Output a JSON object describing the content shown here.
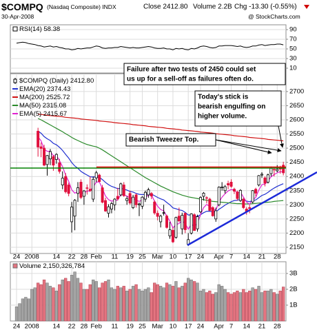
{
  "header": {
    "symbol": "$COMPQ",
    "name": "(Nasdaq Composite) INDX",
    "close": "Close 2412.80",
    "volume": "Volume 2.2B",
    "change": "Chg -13.30 (-0.55%)",
    "date": "30-Apr-2008",
    "source": "@ StockCharts.com"
  },
  "chart_data": [
    {
      "type": "line",
      "name": "RSI(14)",
      "color": "#000000",
      "ylim": [
        0,
        100
      ],
      "yticks": [
        10,
        30,
        50,
        70,
        90
      ],
      "grid": true,
      "values": [
        62,
        63,
        64,
        63,
        61,
        60,
        59,
        57,
        56,
        54,
        55,
        56,
        54,
        55,
        53,
        52,
        50,
        50,
        48,
        49,
        51,
        50,
        51,
        52,
        52,
        54,
        56,
        55,
        52,
        51,
        52,
        52,
        53,
        53,
        55,
        54,
        53,
        52,
        53,
        52,
        52,
        53,
        54,
        55,
        54,
        52,
        51,
        51,
        52,
        50,
        50,
        48,
        51,
        50,
        51,
        49,
        48,
        51,
        50,
        52,
        55,
        56,
        55,
        53,
        52,
        53,
        56,
        56,
        57,
        57,
        57,
        56,
        55,
        56,
        54,
        53,
        54,
        56,
        56,
        58,
        59,
        57,
        58,
        59,
        59,
        60,
        60,
        58.38
      ]
    },
    {
      "type": "candlestick",
      "name": "$COMPQ (Daily)",
      "legend_value": "2412.80",
      "up_color": "#000000",
      "down_color": "#e0103c",
      "ylim": [
        2128,
        2763
      ],
      "yticks": [
        2150,
        2200,
        2250,
        2300,
        2350,
        2400,
        2450,
        2500,
        2550,
        2600,
        2650,
        2700
      ],
      "grid": true,
      "categories": [
        "24",
        null,
        null,
        null,
        null,
        "2008",
        null,
        null,
        null,
        null,
        null,
        null,
        null,
        "14",
        null,
        null,
        null,
        null,
        "22",
        null,
        null,
        null,
        "28",
        null,
        null,
        null,
        "Feb",
        null,
        null,
        null,
        null,
        null,
        "11",
        null,
        null,
        null,
        null,
        "19",
        null,
        null,
        null,
        "25",
        null,
        null,
        null,
        null,
        "Mar",
        null,
        null,
        null,
        null,
        "10",
        null,
        null,
        null,
        null,
        "17",
        null,
        null,
        null,
        "24",
        null,
        null,
        null,
        null,
        null,
        "Apr",
        null,
        null,
        null,
        "7",
        null,
        null,
        null,
        null,
        "14",
        null,
        null,
        null,
        null,
        "21",
        null,
        null,
        null,
        null,
        "28",
        null,
        null
      ],
      "open": [
        null,
        null,
        null,
        null,
        null,
        null,
        null,
        2560,
        2505,
        2500,
        2442,
        2462,
        2470,
        2460,
        2448,
        2370,
        2400,
        2370,
        2240,
        2260,
        2340,
        2380,
        2330,
        2360,
        2355,
        2320,
        2395,
        2405,
        2360,
        2315,
        2270,
        2285,
        2300,
        2330,
        2335,
        2370,
        2315,
        2340,
        2290,
        2335,
        2300,
        2295,
        2320,
        2335,
        2340,
        2310,
        2270,
        2240,
        2270,
        2260,
        2190,
        2210,
        2185,
        2260,
        2215,
        2270,
        2160,
        2200,
        2265,
        2215,
        2275,
        2330,
        2325,
        2320,
        2290,
        2250,
        2300,
        2360,
        2350,
        2375,
        2380,
        2355,
        2345,
        2315,
        2320,
        2285,
        2290,
        2310,
        2355,
        2370,
        2405,
        2395,
        2380,
        2410,
        2425,
        2420,
        2430,
        2440
      ],
      "high": [
        null,
        null,
        null,
        null,
        null,
        null,
        null,
        2572,
        2520,
        2512,
        2476,
        2497,
        2476,
        2482,
        2462,
        2418,
        2412,
        2378,
        2310,
        2320,
        2380,
        2390,
        2352,
        2372,
        2400,
        2400,
        2420,
        2410,
        2370,
        2325,
        2302,
        2310,
        2323,
        2360,
        2378,
        2380,
        2330,
        2350,
        2335,
        2340,
        2308,
        2330,
        2350,
        2360,
        2345,
        2315,
        2280,
        2265,
        2300,
        2265,
        2240,
        2220,
        2258,
        2290,
        2272,
        2272,
        2200,
        2270,
        2270,
        2265,
        2330,
        2345,
        2330,
        2325,
        2295,
        2290,
        2365,
        2380,
        2370,
        2385,
        2390,
        2360,
        2350,
        2355,
        2325,
        2292,
        2300,
        2352,
        2360,
        2405,
        2415,
        2400,
        2410,
        2435,
        2430,
        2440,
        2438,
        2452
      ],
      "low": [
        null,
        null,
        null,
        null,
        null,
        null,
        null,
        2470,
        2468,
        2436,
        2403,
        2440,
        2420,
        2445,
        2410,
        2355,
        2340,
        2330,
        2202,
        2210,
        2310,
        2320,
        2300,
        2336,
        2345,
        2310,
        2380,
        2380,
        2305,
        2275,
        2255,
        2270,
        2280,
        2315,
        2330,
        2328,
        2300,
        2300,
        2285,
        2290,
        2260,
        2285,
        2310,
        2325,
        2320,
        2265,
        2245,
        2220,
        2262,
        2216,
        2180,
        2165,
        2180,
        2238,
        2195,
        2200,
        2155,
        2195,
        2208,
        2205,
        2270,
        2315,
        2305,
        2278,
        2258,
        2240,
        2295,
        2350,
        2340,
        2355,
        2360,
        2338,
        2315,
        2310,
        2285,
        2265,
        2270,
        2305,
        2330,
        2365,
        2395,
        2365,
        2375,
        2400,
        2400,
        2415,
        2410,
        2404
      ],
      "close": [
        null,
        null,
        null,
        null,
        null,
        null,
        null,
        2504,
        2499,
        2440,
        2474,
        2488,
        2440,
        2478,
        2418,
        2394,
        2346,
        2340,
        2292,
        2316,
        2360,
        2326,
        2349,
        2358,
        2350,
        2390,
        2413,
        2382,
        2309,
        2278,
        2293,
        2304,
        2320,
        2321,
        2374,
        2332,
        2322,
        2306,
        2327,
        2300,
        2303,
        2327,
        2344,
        2353,
        2331,
        2271,
        2259,
        2260,
        2272,
        2220,
        2212,
        2169,
        2255,
        2243,
        2263,
        2212,
        2177,
        2268,
        2209,
        2258,
        2326,
        2341,
        2324,
        2280,
        2261,
        2279,
        2362,
        2363,
        2364,
        2370,
        2365,
        2348,
        2322,
        2351,
        2290,
        2275,
        2287,
        2350,
        2341,
        2403,
        2408,
        2376,
        2406,
        2429,
        2423,
        2425,
        2426,
        2412.8
      ],
      "series": [
        {
          "name": "EMA(20)",
          "color": "#2030d0",
          "values": [
            null,
            null,
            null,
            null,
            null,
            null,
            null,
            2560,
            2553,
            2541,
            2533,
            2527,
            2517,
            2512,
            2503,
            2492,
            2478,
            2465,
            2449,
            2437,
            2429,
            2418,
            2411,
            2405,
            2399,
            2398,
            2399,
            2397,
            2389,
            2379,
            2371,
            2365,
            2361,
            2357,
            2358,
            2355,
            2352,
            2347,
            2345,
            2340,
            2337,
            2336,
            2337,
            2339,
            2338,
            2332,
            2326,
            2321,
            2317,
            2308,
            2300,
            2289,
            2286,
            2282,
            2280,
            2273,
            2264,
            2264,
            2259,
            2259,
            2265,
            2272,
            2277,
            2277,
            2275,
            2275,
            2284,
            2291,
            2299,
            2305,
            2311,
            2315,
            2316,
            2320,
            2317,
            2313,
            2311,
            2315,
            2317,
            2325,
            2333,
            2337,
            2344,
            2352,
            2359,
            2365,
            2370,
            2374.43
          ]
        },
        {
          "name": "MA(200)",
          "color": "#d01010",
          "values": [
            null,
            null,
            null,
            null,
            null,
            null,
            null,
            2620,
            2619,
            2618,
            2616,
            2615,
            2614,
            2613,
            2612,
            2611,
            2609,
            2608,
            2607,
            2606,
            2605,
            2603,
            2602,
            2601,
            2600,
            2599,
            2598,
            2596,
            2595,
            2594,
            2593,
            2592,
            2590,
            2589,
            2588,
            2587,
            2586,
            2585,
            2583,
            2582,
            2581,
            2580,
            2579,
            2577,
            2576,
            2575,
            2574,
            2573,
            2572,
            2570,
            2569,
            2568,
            2567,
            2566,
            2564,
            2563,
            2562,
            2561,
            2560,
            2559,
            2557,
            2556,
            2555,
            2554,
            2553,
            2551,
            2550,
            2549,
            2548,
            2547,
            2546,
            2544,
            2543,
            2542,
            2541,
            2540,
            2538,
            2537,
            2536,
            2535,
            2534,
            2533,
            2531,
            2530,
            2529,
            2528,
            2527,
            2525.72
          ]
        },
        {
          "name": "MA(50)",
          "color": "#2a8a2a",
          "values": [
            null,
            null,
            null,
            null,
            null,
            null,
            null,
            2605,
            2600,
            2594,
            2588,
            2582,
            2576,
            2570,
            2564,
            2558,
            2551,
            2545,
            2538,
            2532,
            2527,
            2522,
            2517,
            2513,
            2510,
            2507,
            2505,
            2500,
            2494,
            2487,
            2480,
            2473,
            2466,
            2459,
            2452,
            2445,
            2438,
            2431,
            2424,
            2417,
            2410,
            2403,
            2396,
            2390,
            2384,
            2378,
            2372,
            2366,
            2361,
            2356,
            2351,
            2346,
            2342,
            2338,
            2334,
            2331,
            2328,
            2326,
            2324,
            2322,
            2320,
            2318,
            2316,
            2314,
            2312,
            2311,
            2310,
            2309,
            2308,
            2307,
            2306,
            2305,
            2304,
            2304,
            2303,
            2303,
            2303,
            2304,
            2305,
            2306,
            2307,
            2308,
            2309,
            2310,
            2312,
            2313,
            2314,
            2315.08
          ]
        },
        {
          "name": "EMA(5)",
          "color": "#e020d0",
          "values": [
            null,
            null,
            null,
            null,
            null,
            null,
            null,
            2540,
            2526,
            2497,
            2489,
            2489,
            2473,
            2475,
            2456,
            2435,
            2405,
            2383,
            2353,
            2341,
            2347,
            2340,
            2343,
            2348,
            2349,
            2363,
            2380,
            2381,
            2357,
            2331,
            2318,
            2313,
            2315,
            2317,
            2336,
            2335,
            2331,
            2323,
            2324,
            2316,
            2312,
            2317,
            2326,
            2335,
            2334,
            2313,
            2295,
            2283,
            2279,
            2259,
            2243,
            2218,
            2230,
            2234,
            2244,
            2233,
            2214,
            2232,
            2224,
            2235,
            2265,
            2290,
            2301,
            2294,
            2283,
            2282,
            2309,
            2327,
            2339,
            2349,
            2354,
            2352,
            2342,
            2345,
            2327,
            2310,
            2302,
            2318,
            2326,
            2352,
            2371,
            2373,
            2384,
            2399,
            2407,
            2413,
            2417,
            2415.67
          ]
        }
      ],
      "annotations": [
        {
          "lines": [
            "Failure after two tests of 2450 could set",
            "us up for a sell-off as failures often do."
          ],
          "color": "#000000"
        },
        {
          "lines": [
            "Today's stick is",
            "bearish engulfing on",
            "higher volume."
          ],
          "color": "#e00000"
        },
        {
          "lines": [
            "Bearish Tweezer Top."
          ],
          "color": "#0000c8"
        }
      ]
    },
    {
      "type": "bar",
      "name": "Volume",
      "legend_value": "2,150,326,784",
      "up_color": "#a4a4a4",
      "down_color": "#e47480",
      "ylim": [
        0,
        3740000000
      ],
      "yticks": [
        {
          "value": 1000000000,
          "label": "1B"
        },
        {
          "value": 2000000000,
          "label": "2B"
        },
        {
          "value": 3000000000,
          "label": "3B"
        }
      ],
      "grid": true,
      "categories": [
        "24",
        null,
        null,
        null,
        null,
        "2008",
        null,
        null,
        null,
        null,
        null,
        null,
        null,
        "14",
        null,
        null,
        null,
        null,
        "22",
        null,
        null,
        null,
        "28",
        null,
        null,
        null,
        "Feb",
        null,
        null,
        null,
        null,
        null,
        "11",
        null,
        null,
        null,
        null,
        "19",
        null,
        null,
        null,
        "25",
        null,
        null,
        null,
        null,
        "Mar",
        null,
        null,
        null,
        null,
        "10",
        null,
        null,
        null,
        null,
        "17",
        null,
        null,
        null,
        "24",
        null,
        null,
        null,
        null,
        null,
        "Apr",
        null,
        null,
        null,
        "7",
        null,
        null,
        null,
        null,
        "14",
        null,
        null,
        null,
        null,
        "21",
        null,
        null,
        null,
        null,
        "28",
        null,
        null
      ],
      "values": [
        900000000,
        1100000000,
        1400000000,
        1500000000,
        1400000000,
        2000000000,
        2100000000,
        2400000000,
        2300000000,
        2600000000,
        2400000000,
        2200000000,
        2100000000,
        1900000000,
        2300000000,
        2600000000,
        2700000000,
        2500000000,
        2900000000,
        3100000000,
        2700000000,
        2400000000,
        2000000000,
        2000000000,
        2300000000,
        2600000000,
        2500000000,
        2100000000,
        2400000000,
        2500000000,
        2600000000,
        2100000000,
        2000000000,
        2200000000,
        2100000000,
        2200000000,
        1900000000,
        2000000000,
        2200000000,
        2300000000,
        2000000000,
        1900000000,
        2000000000,
        2100000000,
        1800000000,
        2400000000,
        2300000000,
        2200000000,
        2100000000,
        2400000000,
        2300000000,
        2200000000,
        2500000000,
        2100000000,
        2200000000,
        2400000000,
        2700000000,
        2600000000,
        2500000000,
        2400000000,
        1900000000,
        2000000000,
        1800000000,
        1900000000,
        1700000000,
        1800000000,
        2300000000,
        2200000000,
        2000000000,
        1800000000,
        1700000000,
        1800000000,
        1900000000,
        1800000000,
        2000000000,
        1800000000,
        1900000000,
        2100000000,
        2000000000,
        2200000000,
        1800000000,
        1900000000,
        1900000000,
        2000000000,
        1800000000,
        1700000000,
        1900000000,
        2150326784
      ]
    }
  ]
}
